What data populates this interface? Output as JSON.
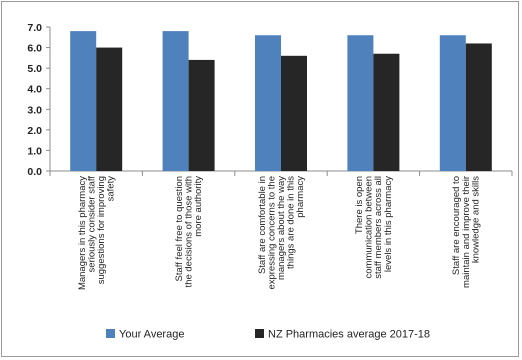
{
  "chart_data": {
    "type": "bar",
    "categories": [
      [
        "Managers in this pharmacy",
        "seriously consider staff",
        "suggestions for improving",
        "safety"
      ],
      [
        "Staff feel free to question",
        "the decisions of those with",
        "more authority"
      ],
      [
        "Staff are comfortable in",
        "expressing concerns to the",
        "managers about the way",
        "things are done in this",
        "pharmacy"
      ],
      [
        "There is open",
        "communication between",
        "staff members across all",
        "levels in this pharmacy"
      ],
      [
        "Staff are encouraged to",
        "maintain and improve their",
        "knowledge and skills"
      ]
    ],
    "series": [
      {
        "name": "Your Average",
        "values": [
          6.8,
          6.8,
          6.6,
          6.6,
          6.6
        ],
        "color": "#4f81bd"
      },
      {
        "name": "NZ Pharmacies average 2017-18",
        "values": [
          6.0,
          5.4,
          5.6,
          5.7,
          6.2
        ],
        "color": "#262626"
      }
    ],
    "y_ticks": [
      "0.0",
      "1.0",
      "2.0",
      "3.0",
      "4.0",
      "5.0",
      "6.0",
      "7.0"
    ],
    "ylim": [
      0,
      7
    ],
    "grid": false,
    "legend_placement": "bottom"
  }
}
